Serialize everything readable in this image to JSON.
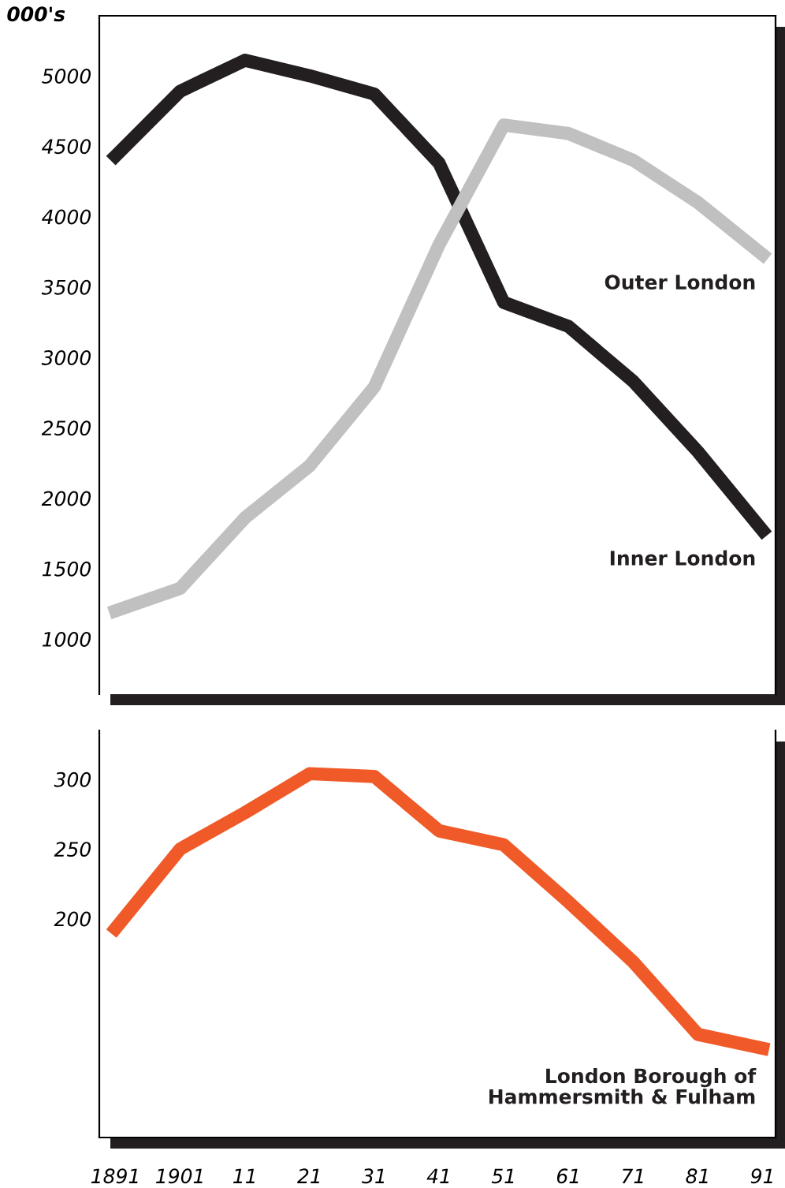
{
  "chart_data": [
    {
      "type": "line",
      "ylabel": "000's",
      "categories": [
        "1891",
        "1901",
        "11",
        "21",
        "31",
        "41",
        "51",
        "61",
        "71",
        "81",
        "91"
      ],
      "ylim": [
        608,
        5426
      ],
      "yticks": [
        1000,
        1500,
        2000,
        2500,
        3000,
        3500,
        4000,
        4500,
        5000
      ],
      "tick_labels": "y",
      "grid": false,
      "legend": false,
      "marker": "none",
      "line_style": "solid",
      "series": [
        {
          "name": "Inner London",
          "color": "#231f20",
          "values": [
            4430,
            4890,
            5110,
            5000,
            4870,
            4380,
            3390,
            3220,
            2830,
            2330,
            1770
          ]
        },
        {
          "name": "Outer London",
          "color": "#c0c0c0",
          "values": [
            1200,
            1360,
            1860,
            2230,
            2790,
            3800,
            4650,
            4590,
            4400,
            4100,
            3730
          ]
        }
      ]
    },
    {
      "type": "line",
      "categories": [
        "1891",
        "1901",
        "11",
        "21",
        "31",
        "41",
        "51",
        "61",
        "71",
        "81",
        "91"
      ],
      "ylim": [
        43,
        335
      ],
      "yticks": [
        200,
        250,
        300
      ],
      "grid": false,
      "legend": false,
      "marker": "none",
      "line_style": "solid",
      "series": [
        {
          "name": "London Borough of\nHammersmith & Fulham",
          "color": "#f05a28",
          "values": [
            193,
            250,
            276,
            304,
            302,
            263,
            253,
            212,
            169,
            117,
            107
          ]
        }
      ]
    }
  ]
}
